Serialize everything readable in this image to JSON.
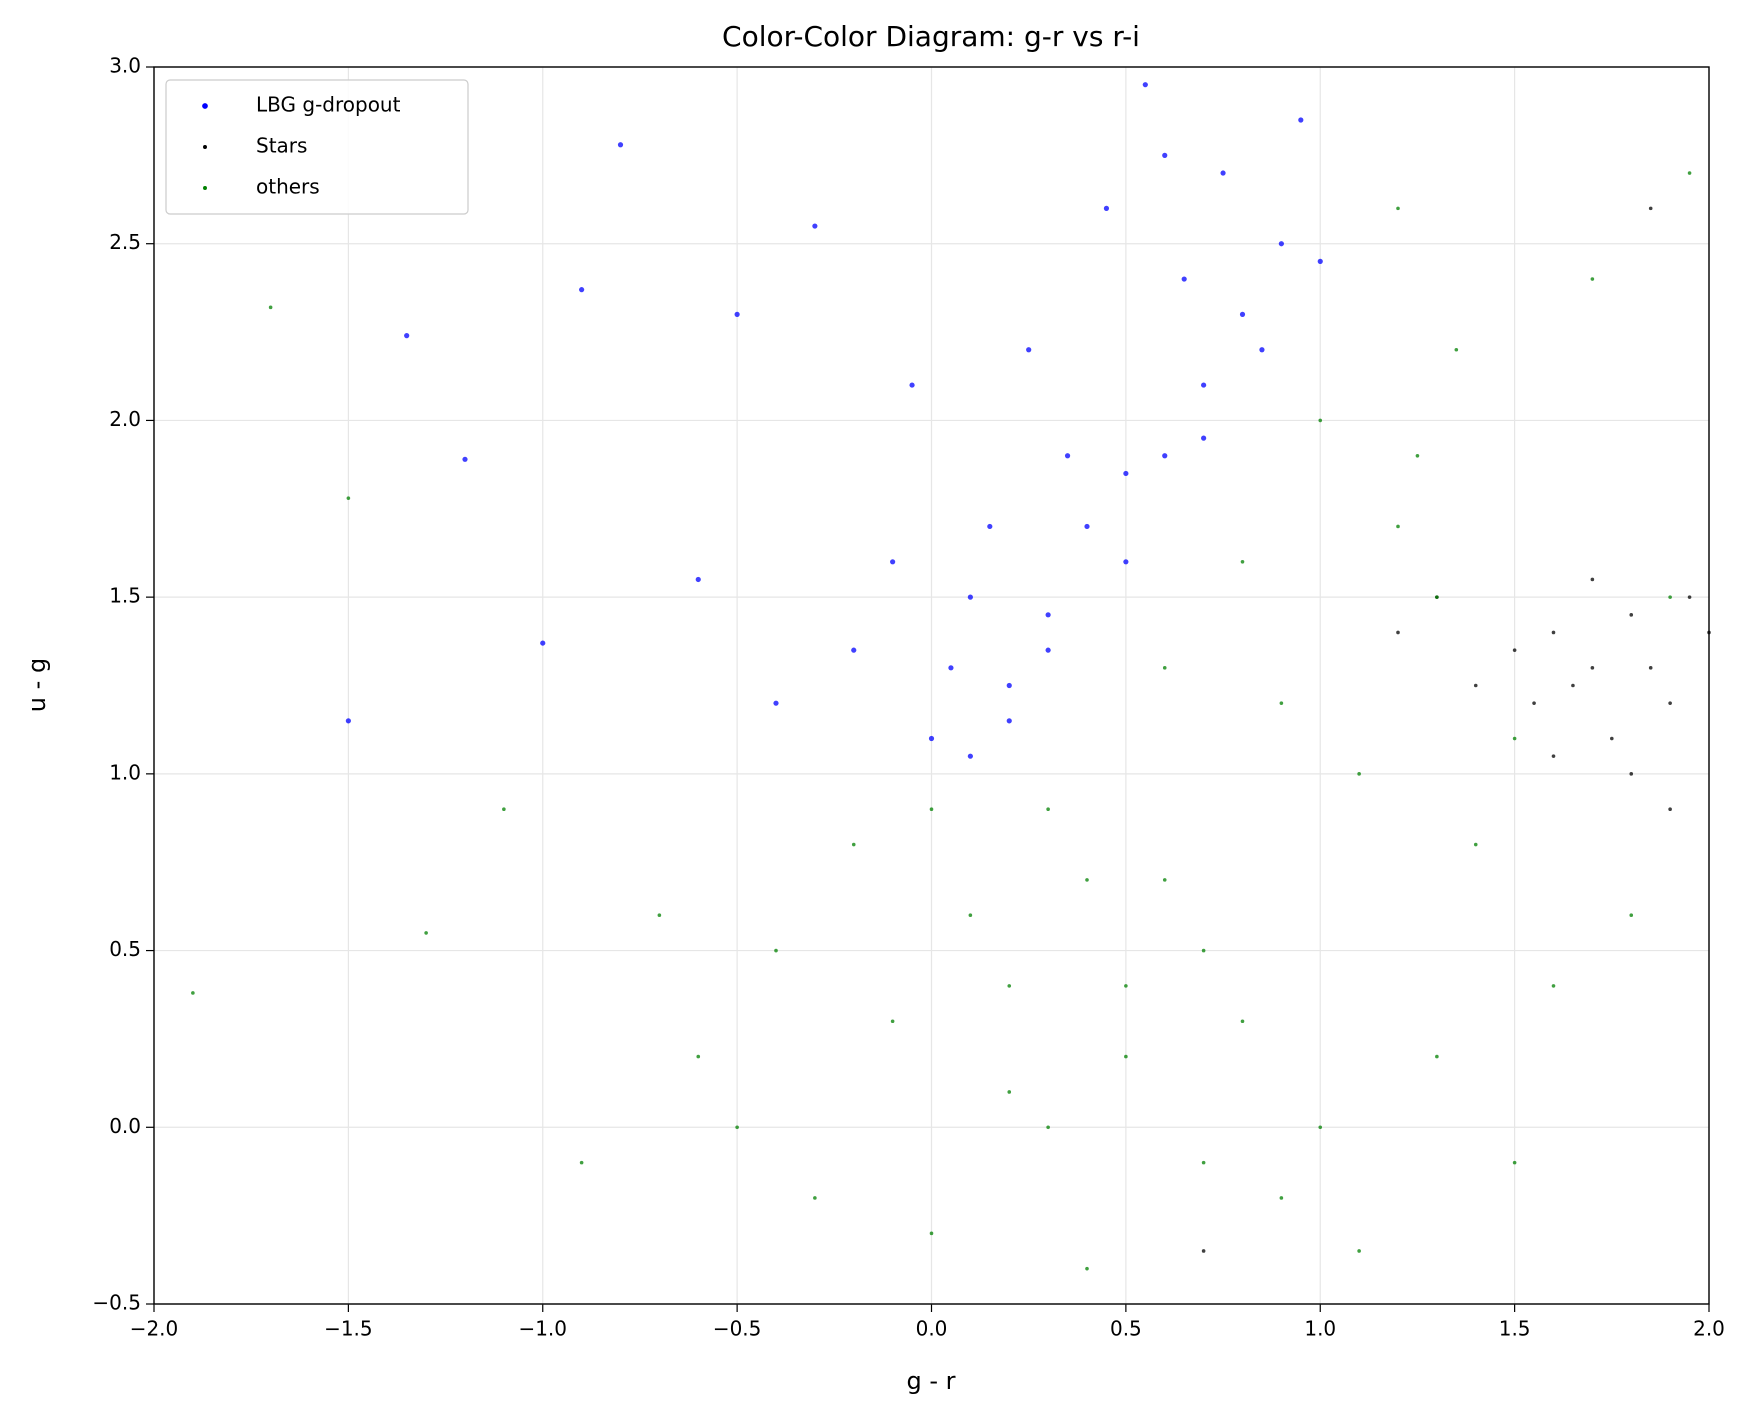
{
  "chart_data": {
    "type": "scatter",
    "title": "Color-Color Diagram: g-r vs r-i",
    "x_label": "g - r",
    "y_label": "u - g",
    "xlim": [
      -2,
      2
    ],
    "ylim": [
      -0.5,
      3
    ],
    "xticks": [
      {
        "value": -2,
        "label": "−2.0"
      },
      {
        "value": -1.5,
        "label": "−1.5"
      },
      {
        "value": -1,
        "label": "−1.0"
      },
      {
        "value": -0.5,
        "label": "−0.5"
      },
      {
        "value": 0,
        "label": "0.0"
      },
      0.5,
      {
        "value": 1,
        "label": "1.0"
      },
      1.5,
      {
        "value": 2,
        "label": "2.0"
      }
    ],
    "yticks": [
      {
        "value": -0.5,
        "label": "−0.5"
      },
      {
        "value": 0,
        "label": "0.0"
      },
      0.5,
      {
        "value": 1,
        "label": "1.0"
      },
      1.5,
      {
        "value": 2,
        "label": "2.0"
      },
      2.5,
      {
        "value": 3,
        "label": "3.0"
      }
    ],
    "grid": true,
    "legend": "upper left",
    "series": [
      {
        "name": "LBG g-dropout",
        "color": "#0000ff",
        "x": [
          -1.5,
          -1.35,
          -1.2,
          -1.0,
          -0.9,
          -0.8,
          -0.6,
          -0.5,
          -0.4,
          -0.3,
          -0.2,
          -0.1,
          0.0,
          0.05,
          0.1,
          0.15,
          0.2,
          0.25,
          0.3,
          0.35,
          0.4,
          0.45,
          0.5,
          0.55,
          0.6,
          0.65,
          0.7,
          0.75,
          0.8,
          0.85,
          0.9,
          0.95,
          1.0,
          0.3,
          0.5,
          0.7,
          0.1,
          -0.05,
          0.2,
          0.6
        ],
        "values": [
          1.15,
          2.24,
          1.89,
          1.37,
          2.37,
          2.78,
          1.55,
          2.3,
          1.2,
          2.55,
          1.35,
          1.6,
          1.1,
          1.3,
          1.05,
          1.7,
          1.25,
          2.2,
          1.45,
          1.9,
          1.7,
          2.6,
          1.85,
          2.95,
          1.9,
          2.4,
          2.1,
          2.7,
          2.3,
          2.2,
          2.5,
          2.85,
          2.45,
          1.35,
          1.6,
          1.95,
          1.5,
          2.1,
          1.15,
          2.75
        ]
      },
      {
        "name": "Stars",
        "color": "#000000",
        "x": [
          1.5,
          1.55,
          1.6,
          1.65,
          1.7,
          1.75,
          1.8,
          1.85,
          1.9,
          1.95,
          2.0,
          1.6,
          1.7,
          1.8,
          1.9,
          1.4,
          1.3,
          0.7,
          1.2,
          1.85
        ],
        "values": [
          1.35,
          1.2,
          1.4,
          1.25,
          1.3,
          1.1,
          1.45,
          1.3,
          1.2,
          1.5,
          1.4,
          1.05,
          1.55,
          1.0,
          0.9,
          1.25,
          1.5,
          -0.35,
          1.4,
          2.6
        ]
      },
      {
        "name": "others",
        "color": "#008000",
        "x": [
          -1.9,
          -1.7,
          -1.5,
          -1.3,
          -1.1,
          -0.9,
          -0.7,
          -0.6,
          -0.5,
          -0.4,
          -0.3,
          -0.2,
          -0.1,
          0.0,
          0.1,
          0.2,
          0.3,
          0.4,
          0.5,
          0.6,
          0.7,
          0.8,
          0.9,
          1.0,
          1.1,
          1.2,
          1.25,
          1.3,
          1.35,
          1.4,
          1.5,
          1.6,
          1.7,
          1.8,
          1.9,
          0.2,
          0.4,
          0.6,
          0.8,
          1.0,
          1.2,
          0.0,
          0.3,
          0.5,
          0.7,
          0.9,
          1.1,
          1.3,
          1.5,
          1.95
        ],
        "values": [
          0.38,
          2.32,
          1.78,
          0.55,
          0.9,
          -0.1,
          0.6,
          0.2,
          0.0,
          0.5,
          -0.2,
          0.8,
          0.3,
          -0.3,
          0.6,
          0.1,
          0.9,
          -0.4,
          0.4,
          0.7,
          -0.1,
          0.3,
          1.2,
          0.0,
          1.0,
          1.7,
          1.9,
          1.5,
          2.2,
          0.8,
          1.1,
          0.4,
          2.4,
          0.6,
          1.5,
          0.4,
          0.7,
          1.3,
          1.6,
          2.0,
          2.6,
          0.9,
          0.0,
          0.2,
          0.5,
          -0.2,
          -0.35,
          0.2,
          -0.1,
          2.7
        ]
      }
    ]
  }
}
